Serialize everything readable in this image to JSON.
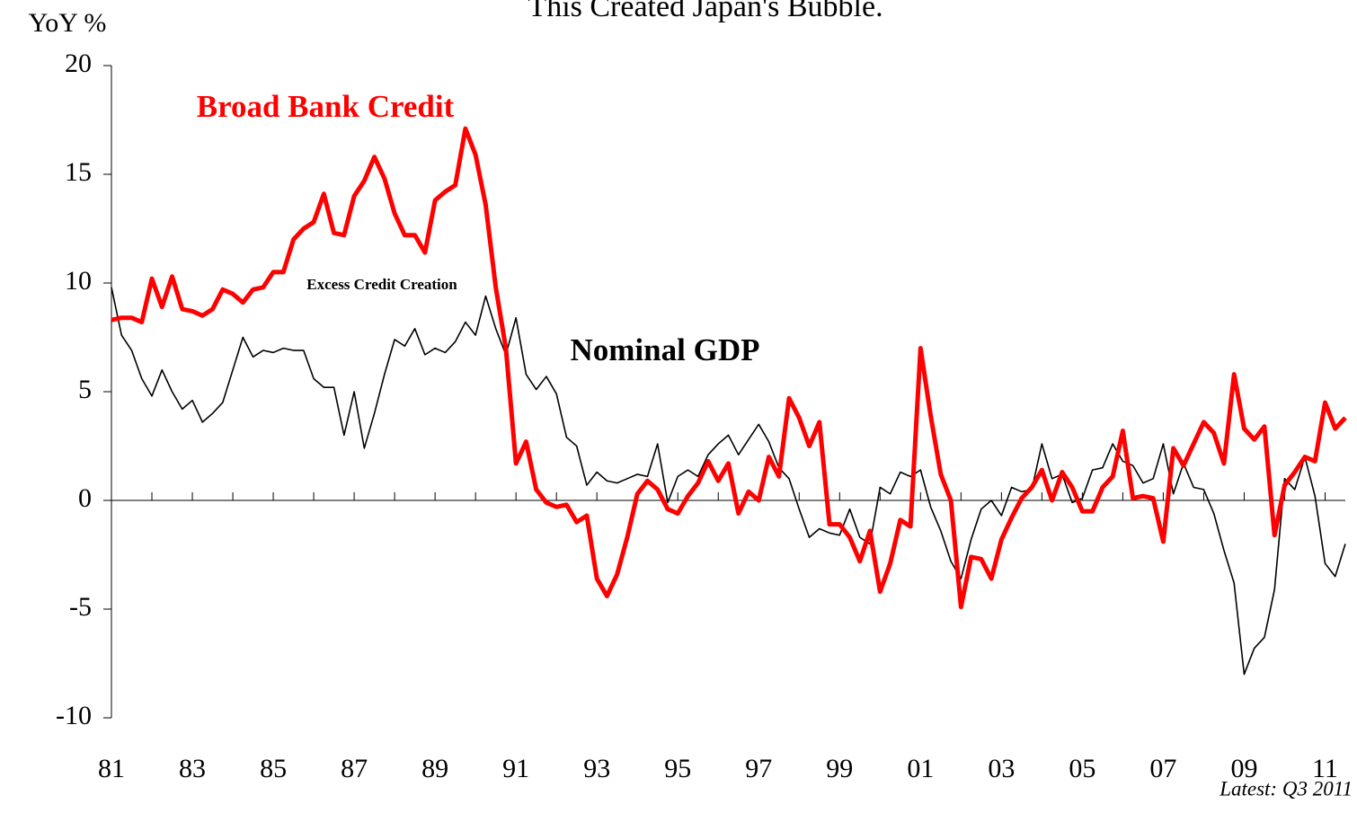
{
  "chart_data": {
    "type": "line",
    "title": "This Created Japan's Bubble.",
    "y_label": "YoY %",
    "annotations": [
      {
        "text": "Broad Bank Credit"
      },
      {
        "text": "Nominal GDP"
      },
      {
        "text": "Excess Credit Creation"
      },
      {
        "text": "Latest: Q3 2011"
      }
    ],
    "x": [
      1981,
      1981.25,
      1981.5,
      1981.75,
      1982,
      1982.25,
      1982.5,
      1982.75,
      1983,
      1983.25,
      1983.5,
      1983.75,
      1984,
      1984.25,
      1984.5,
      1984.75,
      1985,
      1985.25,
      1985.5,
      1985.75,
      1986,
      1986.25,
      1986.5,
      1986.75,
      1987,
      1987.25,
      1987.5,
      1987.75,
      1988,
      1988.25,
      1988.5,
      1988.75,
      1989,
      1989.25,
      1989.5,
      1989.75,
      1990,
      1990.25,
      1990.5,
      1990.75,
      1991,
      1991.25,
      1991.5,
      1991.75,
      1992,
      1992.25,
      1992.5,
      1992.75,
      1993,
      1993.25,
      1993.5,
      1993.75,
      1994,
      1994.25,
      1994.5,
      1994.75,
      1995,
      1995.25,
      1995.5,
      1995.75,
      1996,
      1996.25,
      1996.5,
      1996.75,
      1997,
      1997.25,
      1997.5,
      1997.75,
      1998,
      1998.25,
      1998.5,
      1998.75,
      1999,
      1999.25,
      1999.5,
      1999.75,
      2000,
      2000.25,
      2000.5,
      2000.75,
      2001,
      2001.25,
      2001.5,
      2001.75,
      2002,
      2002.25,
      2002.5,
      2002.75,
      2003,
      2003.25,
      2003.5,
      2003.75,
      2004,
      2004.25,
      2004.5,
      2004.75,
      2005,
      2005.25,
      2005.5,
      2005.75,
      2006,
      2006.25,
      2006.5,
      2006.75,
      2007,
      2007.25,
      2007.5,
      2007.75,
      2008,
      2008.25,
      2008.5,
      2008.75,
      2009,
      2009.25,
      2009.5,
      2009.75,
      2010,
      2010.25,
      2010.5,
      2010.75,
      2011,
      2011.25,
      2011.5
    ],
    "series": [
      {
        "name": "Broad Bank Credit",
        "color": "#ff0000",
        "values": [
          8.3,
          8.4,
          8.4,
          8.2,
          10.2,
          8.9,
          10.3,
          8.8,
          8.7,
          8.5,
          8.8,
          9.7,
          9.5,
          9.1,
          9.7,
          9.8,
          10.5,
          10.5,
          12.0,
          12.5,
          12.8,
          14.1,
          12.3,
          12.2,
          14.0,
          14.7,
          15.8,
          14.8,
          13.2,
          12.2,
          12.2,
          11.4,
          13.8,
          14.2,
          14.5,
          17.1,
          15.9,
          13.6,
          9.8,
          7.0,
          1.7,
          2.7,
          0.5,
          -0.1,
          -0.3,
          -0.2,
          -1.0,
          -0.7,
          -3.6,
          -4.4,
          -3.4,
          -1.7,
          0.3,
          0.9,
          0.5,
          -0.4,
          -0.6,
          0.2,
          0.8,
          1.8,
          0.9,
          1.7,
          -0.6,
          0.4,
          0.0,
          2.0,
          1.1,
          4.7,
          3.8,
          2.5,
          3.6,
          -1.1,
          -1.1,
          -1.7,
          -2.8,
          -1.4,
          -4.2,
          -2.9,
          -0.9,
          -1.2,
          7.0,
          3.9,
          1.2,
          0.0,
          -4.9,
          -2.6,
          -2.7,
          -3.6,
          -1.8,
          -0.8,
          0.1,
          0.6,
          1.4,
          0.0,
          1.3,
          0.6,
          -0.5,
          -0.5,
          0.6,
          1.1,
          3.2,
          0.1,
          0.2,
          0.1,
          -1.9,
          2.4,
          1.6,
          2.6,
          3.6,
          3.1,
          1.7,
          5.8,
          3.3,
          2.8,
          3.4,
          -1.6,
          0.7,
          1.3,
          2.0,
          1.8,
          4.5,
          3.3,
          3.8
        ]
      },
      {
        "name": "Nominal GDP",
        "color": "#000000",
        "values": [
          9.8,
          7.6,
          6.9,
          5.6,
          4.8,
          6.0,
          5.0,
          4.2,
          4.6,
          3.6,
          4.0,
          4.5,
          6.0,
          7.5,
          6.6,
          6.9,
          6.8,
          7.0,
          6.9,
          6.9,
          5.6,
          5.2,
          5.2,
          3.0,
          5.0,
          2.4,
          4.0,
          5.8,
          7.4,
          7.1,
          7.9,
          6.7,
          7.0,
          6.8,
          7.3,
          8.2,
          7.6,
          9.4,
          7.9,
          6.7,
          8.4,
          5.8,
          5.1,
          5.7,
          4.9,
          2.9,
          2.5,
          0.7,
          1.3,
          0.9,
          0.8,
          1.0,
          1.2,
          1.1,
          2.6,
          -0.1,
          1.1,
          1.4,
          1.1,
          2.1,
          2.6,
          3.0,
          2.1,
          2.8,
          3.5,
          2.7,
          1.5,
          1.0,
          -0.4,
          -1.7,
          -1.3,
          -1.5,
          -1.6,
          -0.4,
          -1.7,
          -2.0,
          0.6,
          0.3,
          1.3,
          1.1,
          1.4,
          -0.3,
          -1.4,
          -2.8,
          -3.6,
          -1.8,
          -0.4,
          0.0,
          -0.7,
          0.6,
          0.4,
          0.5,
          2.6,
          1.0,
          1.2,
          -0.1,
          0.1,
          1.4,
          1.5,
          2.6,
          1.8,
          1.6,
          0.8,
          1.0,
          2.6,
          0.3,
          1.7,
          0.6,
          0.5,
          -0.6,
          -2.3,
          -3.8,
          -8.0,
          -6.8,
          -6.3,
          -4.1,
          1.0,
          0.5,
          2.0,
          0.2,
          -2.9,
          -3.5,
          -2.0
        ]
      }
    ],
    "shade_color": "#c0c0c0",
    "xlim": [
      1981,
      2011.5
    ],
    "xticks": [
      {
        "value": 1981,
        "label": "81"
      },
      {
        "value": 1983,
        "label": "83"
      },
      {
        "value": 1985,
        "label": "85"
      },
      {
        "value": 1987,
        "label": "87"
      },
      {
        "value": 1989,
        "label": "89"
      },
      {
        "value": 1991,
        "label": "91"
      },
      {
        "value": 1993,
        "label": "93"
      },
      {
        "value": 1995,
        "label": "95"
      },
      {
        "value": 1997,
        "label": "97"
      },
      {
        "value": 1999,
        "label": "99"
      },
      {
        "value": 2001,
        "label": "01"
      },
      {
        "value": 2003,
        "label": "03"
      },
      {
        "value": 2005,
        "label": "05"
      },
      {
        "value": 2007,
        "label": "07"
      },
      {
        "value": 2009,
        "label": "09"
      },
      {
        "value": 2011,
        "label": "11"
      }
    ],
    "ylim": [
      -10,
      20
    ],
    "yticks": [
      -10,
      -5,
      0,
      5,
      10,
      15,
      20
    ],
    "grid": false
  }
}
